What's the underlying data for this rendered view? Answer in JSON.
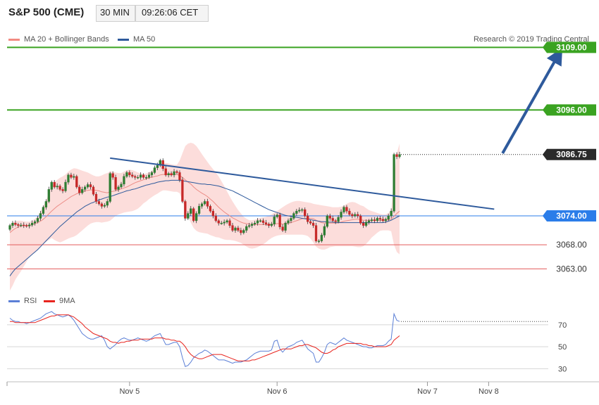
{
  "header": {
    "title": "S&P 500 (CME)",
    "timeframe": "30 MIN",
    "time": "09:26:06 CET"
  },
  "legend": {
    "items": [
      {
        "label": "MA 20 + Bollinger Bands",
        "color": "#f28b82"
      },
      {
        "label": "MA 50",
        "color": "#2e5a9c"
      }
    ],
    "copyright": "Research © 2019 Trading Central"
  },
  "rsi_legend": {
    "items": [
      {
        "label": "RSI",
        "color": "#5b7fd6"
      },
      {
        "label": "9MA",
        "color": "#e8241e"
      }
    ]
  },
  "price_levels": [
    {
      "label": "3109.00",
      "value": 3109.0,
      "color": "#3aa321",
      "style": "resistance"
    },
    {
      "label": "3096.00",
      "value": 3096.0,
      "color": "#3aa321",
      "style": "resistance"
    },
    {
      "label": "3086.75",
      "value": 3086.75,
      "color": "#1f1f1f",
      "style": "last"
    },
    {
      "label": "3074.00",
      "value": 3074.0,
      "color": "#2b7de9",
      "style": "pivot"
    },
    {
      "label": "3068.00",
      "value": 3068.0,
      "color": "#e35b5b",
      "style": "support"
    },
    {
      "label": "3063.00",
      "value": 3063.0,
      "color": "#e35b5b",
      "style": "support"
    }
  ],
  "rsi_levels": [
    "70",
    "50",
    "30"
  ],
  "x_labels": [
    "Nov 5",
    "Nov 6",
    "Nov 7",
    "Nov 8"
  ],
  "chart_data": {
    "type": "candlestick",
    "price_scale": {
      "min": 3057.5,
      "max": 3113
    },
    "rsi_scale": {
      "min": 20,
      "max": 84
    },
    "date_ticks": [
      {
        "label": "Nov 5",
        "index": 43
      },
      {
        "label": "Nov 6",
        "index": 96
      },
      {
        "label": "Nov 7",
        "index": 150
      },
      {
        "label": "Nov 8",
        "index": 172
      }
    ],
    "close": [
      3072.0,
      3072.5,
      3072.2,
      3072.0,
      3072.1,
      3072.0,
      3071.9,
      3072.1,
      3072.5,
      3072.8,
      3073.5,
      3074.5,
      3075.8,
      3077.0,
      3079.5,
      3081.0,
      3080.0,
      3080.2,
      3079.5,
      3079.2,
      3081.0,
      3082.5,
      3082.0,
      3082.2,
      3080.0,
      3078.8,
      3079.5,
      3080.0,
      3080.5,
      3080.0,
      3078.5,
      3077.0,
      3076.5,
      3076.0,
      3076.2,
      3077.0,
      3082.8,
      3082.0,
      3079.5,
      3080.0,
      3080.6,
      3082.2,
      3083.0,
      3082.5,
      3082.2,
      3082.0,
      3082.0,
      3082.5,
      3082.0,
      3082.0,
      3082.5,
      3083.0,
      3084.0,
      3084.5,
      3085.5,
      3083.8,
      3082.5,
      3082.8,
      3082.5,
      3083.2,
      3083.0,
      3081.5,
      3077.0,
      3073.5,
      3074.5,
      3075.5,
      3073.0,
      3074.5,
      3076.0,
      3076.5,
      3077.0,
      3076.0,
      3075.0,
      3074.0,
      3073.0,
      3072.5,
      3072.5,
      3072.7,
      3073.0,
      3072.0,
      3071.0,
      3071.5,
      3071.0,
      3070.5,
      3071.0,
      3071.8,
      3072.0,
      3072.3,
      3072.5,
      3073.0,
      3073.0,
      3072.6,
      3072.3,
      3072.0,
      3072.3,
      3073.8,
      3074.2,
      3071.7,
      3071.0,
      3072.5,
      3073.0,
      3073.5,
      3074.5,
      3075.0,
      3075.2,
      3075.3,
      3074.0,
      3072.8,
      3072.5,
      3072.0,
      3068.8,
      3068.8,
      3070.0,
      3071.8,
      3074.0,
      3073.5,
      3073.0,
      3072.8,
      3073.7,
      3074.8,
      3075.8,
      3075.0,
      3074.3,
      3074.0,
      3074.3,
      3074.0,
      3072.5,
      3072.0,
      3072.7,
      3073.0,
      3073.2,
      3073.0,
      3073.5,
      3073.3,
      3073.0,
      3073.3,
      3074.0,
      3075.0,
      3086.75,
      3086.3,
      3086.75
    ],
    "ma20": [
      3070.5,
      3071.0,
      3071.4,
      3071.7,
      3071.9,
      3072.0,
      3072.0,
      3072.1,
      3072.2,
      3072.4,
      3072.6,
      3072.9,
      3073.3,
      3073.8,
      3074.4,
      3075.0,
      3075.5,
      3076.0,
      3076.4,
      3076.8,
      3077.2,
      3077.6,
      3078.0,
      3078.3,
      3078.6,
      3078.8,
      3079.0,
      3079.2,
      3079.3,
      3079.4,
      3079.4,
      3079.3,
      3079.2,
      3079.0,
      3078.9,
      3078.8,
      3079.0,
      3079.1,
      3079.2,
      3079.4,
      3079.6,
      3079.8,
      3080.0,
      3080.3,
      3080.6,
      3080.9,
      3081.1,
      3081.3,
      3081.5,
      3081.7,
      3081.9,
      3082.0,
      3082.2,
      3082.3,
      3082.5,
      3082.6,
      3082.6,
      3082.6,
      3082.6,
      3082.6,
      3082.6,
      3082.4,
      3082.0,
      3081.5,
      3081.0,
      3080.6,
      3080.0,
      3079.5,
      3079.1,
      3078.7,
      3078.4,
      3078.0,
      3077.5,
      3077.0,
      3076.4,
      3075.8,
      3075.3,
      3074.8,
      3074.4,
      3074.0,
      3073.6,
      3073.3,
      3073.0,
      3072.7,
      3072.5,
      3072.4,
      3072.3,
      3072.2,
      3072.2,
      3072.2,
      3072.2,
      3072.2,
      3072.2,
      3072.2,
      3072.2,
      3072.3,
      3072.4,
      3072.4,
      3072.3,
      3072.4,
      3072.5,
      3072.6,
      3072.8,
      3073.0,
      3073.2,
      3073.4,
      3073.5,
      3073.5,
      3073.5,
      3073.4,
      3073.1,
      3072.8,
      3072.6,
      3072.5,
      3072.5,
      3072.5,
      3072.5,
      3072.5,
      3072.6,
      3072.7,
      3072.9,
      3073.0,
      3073.1,
      3073.2,
      3073.3,
      3073.3,
      3073.2,
      3073.1,
      3073.1,
      3073.1,
      3073.1,
      3073.1,
      3073.1,
      3073.1,
      3073.1,
      3073.1,
      3073.2,
      3073.3,
      3073.9,
      3074.5,
      3075.0
    ],
    "bb_upper": [
      3072.2,
      3072.6,
      3072.9,
      3073.0,
      3073.0,
      3072.9,
      3072.8,
      3072.8,
      3073.0,
      3073.4,
      3074.0,
      3074.9,
      3076.0,
      3077.2,
      3078.6,
      3080.0,
      3080.9,
      3081.5,
      3081.9,
      3082.2,
      3082.6,
      3083.2,
      3083.6,
      3083.9,
      3083.8,
      3083.6,
      3083.4,
      3083.2,
      3083.0,
      3082.7,
      3082.4,
      3082.2,
      3082.2,
      3082.4,
      3082.7,
      3082.9,
      3083.2,
      3083.2,
      3083.0,
      3082.9,
      3082.9,
      3083.2,
      3083.5,
      3083.6,
      3083.5,
      3083.3,
      3083.0,
      3082.8,
      3082.7,
      3082.8,
      3083.1,
      3083.4,
      3083.8,
      3084.2,
      3084.7,
      3085.0,
      3085.0,
      3084.9,
      3084.7,
      3084.6,
      3084.6,
      3085.5,
      3087.0,
      3088.5,
      3089.0,
      3089.2,
      3089.0,
      3088.5,
      3087.7,
      3086.8,
      3086.0,
      3085.2,
      3084.4,
      3083.7,
      3083.0,
      3082.2,
      3081.2,
      3080.2,
      3079.1,
      3078.0,
      3077.0,
      3076.1,
      3075.2,
      3074.5,
      3073.8,
      3073.4,
      3073.1,
      3073.1,
      3073.2,
      3073.4,
      3073.6,
      3073.7,
      3073.8,
      3074.0,
      3074.3,
      3074.7,
      3075.0,
      3075.4,
      3075.8,
      3076.2,
      3076.5,
      3076.8,
      3077.0,
      3077.1,
      3077.1,
      3077.0,
      3076.9,
      3076.8,
      3076.7,
      3076.5,
      3076.4,
      3076.3,
      3076.2,
      3076.1,
      3076.0,
      3075.9,
      3075.8,
      3075.8,
      3075.8,
      3075.9,
      3076.1,
      3076.5,
      3076.8,
      3076.9,
      3076.8,
      3076.5,
      3076.2,
      3076.0,
      3075.6,
      3075.2,
      3075.0,
      3074.8,
      3074.6,
      3074.4,
      3074.3,
      3074.3,
      3074.6,
      3075.2,
      3082.0,
      3087.0,
      3089.0
    ],
    "bb_lower": [
      3058.5,
      3059.5,
      3060.8,
      3061.7,
      3062.5,
      3063.5,
      3064.5,
      3065.5,
      3066.0,
      3066.4,
      3067.0,
      3067.6,
      3068.1,
      3068.6,
      3069.0,
      3069.4,
      3069.0,
      3068.7,
      3068.5,
      3068.7,
      3069.0,
      3069.3,
      3069.5,
      3069.7,
      3070.0,
      3070.5,
      3071.0,
      3071.5,
      3072.0,
      3072.4,
      3072.6,
      3072.7,
      3072.7,
      3072.6,
      3072.7,
      3072.8,
      3073.0,
      3073.5,
      3074.0,
      3074.3,
      3074.5,
      3074.7,
      3074.8,
      3074.9,
      3075.0,
      3075.2,
      3075.5,
      3076.0,
      3076.6,
      3077.0,
      3077.5,
      3077.9,
      3078.3,
      3078.6,
      3079.0,
      3079.3,
      3079.3,
      3079.2,
      3079.1,
      3079.0,
      3079.0,
      3078.7,
      3077.2,
      3075.5,
      3073.8,
      3072.6,
      3071.5,
      3070.9,
      3070.6,
      3070.5,
      3070.4,
      3070.3,
      3070.0,
      3069.8,
      3069.6,
      3069.5,
      3069.3,
      3069.1,
      3069.0,
      3069.0,
      3068.9,
      3068.8,
      3068.6,
      3068.4,
      3068.0,
      3067.6,
      3067.3,
      3067.2,
      3067.3,
      3067.5,
      3067.8,
      3068.1,
      3068.5,
      3069.0,
      3069.4,
      3069.7,
      3069.9,
      3070.0,
      3070.1,
      3070.1,
      3070.1,
      3070.1,
      3070.1,
      3070.1,
      3070.1,
      3070.1,
      3070.0,
      3069.8,
      3069.3,
      3068.5,
      3067.6,
      3067.2,
      3067.0,
      3067.0,
      3067.2,
      3067.5,
      3067.6,
      3067.7,
      3067.7,
      3067.7,
      3067.7,
      3067.7,
      3067.7,
      3067.7,
      3067.6,
      3067.5,
      3067.5,
      3067.7,
      3068.2,
      3068.8,
      3069.5,
      3070.0,
      3070.5,
      3070.9,
      3071.0,
      3071.0,
      3071.0,
      3070.8,
      3068.0,
      3066.5,
      3066.0
    ],
    "ma50": [
      3061.5,
      3062.3,
      3063.0,
      3063.5,
      3064.0,
      3064.5,
      3065.0,
      3065.5,
      3066.0,
      3066.5,
      3067.0,
      3067.6,
      3068.2,
      3068.8,
      3069.4,
      3070.0,
      3070.6,
      3071.2,
      3071.8,
      3072.3,
      3072.8,
      3073.3,
      3073.8,
      3074.3,
      3074.8,
      3075.2,
      3075.6,
      3076.0,
      3076.3,
      3076.6,
      3076.8,
      3077.1,
      3077.3,
      3077.5,
      3077.7,
      3077.9,
      3078.0,
      3078.2,
      3078.4,
      3078.6,
      3078.8,
      3079.0,
      3079.2,
      3079.3,
      3079.5,
      3079.6,
      3079.8,
      3080.0,
      3080.2,
      3080.4,
      3080.5,
      3080.7,
      3080.8,
      3081.0,
      3081.1,
      3081.2,
      3081.3,
      3081.3,
      3081.4,
      3081.4,
      3081.4,
      3081.4,
      3081.3,
      3081.2,
      3081.1,
      3081.0,
      3080.9,
      3080.8,
      3080.7,
      3080.6,
      3080.6,
      3080.5,
      3080.5,
      3080.4,
      3080.3,
      3080.2,
      3080.0,
      3079.8,
      3079.6,
      3079.4,
      3079.2,
      3078.9,
      3078.6,
      3078.3,
      3078.0,
      3077.7,
      3077.4,
      3077.1,
      3076.8,
      3076.5,
      3076.2,
      3075.9,
      3075.6,
      3075.3,
      3075.1,
      3074.9,
      3074.7,
      3074.5,
      3074.3,
      3074.1,
      3074.0,
      3073.9,
      3073.8,
      3073.7,
      3073.6,
      3073.5,
      3073.4,
      3073.3,
      3073.2,
      3073.1,
      3073.0,
      3072.9,
      3072.8,
      3072.8,
      3072.7,
      3072.7,
      3072.7,
      3072.6,
      3072.6,
      3072.6,
      3072.6,
      3072.6,
      3072.6,
      3072.6,
      3072.6,
      3072.6,
      3072.6,
      3072.6,
      3072.6,
      3072.6,
      3072.6,
      3072.6,
      3072.6,
      3072.6,
      3072.6,
      3072.7,
      3072.9,
      3073.1,
      3073.4,
      3073.7,
      3074.0
    ],
    "rsi": [
      76,
      74,
      73,
      73,
      72,
      72,
      71,
      72,
      73,
      74,
      75,
      76,
      78,
      80,
      81,
      82,
      80,
      79,
      78,
      77,
      78,
      79,
      77,
      74,
      70,
      66,
      62,
      60,
      58,
      57,
      57,
      58,
      59,
      60,
      56,
      50,
      48,
      50,
      52,
      55,
      57,
      58,
      57,
      56,
      56,
      57,
      58,
      57,
      56,
      55,
      56,
      58,
      60,
      61,
      62,
      57,
      52,
      52,
      53,
      54,
      54,
      50,
      40,
      32,
      33,
      36,
      40,
      42,
      44,
      45,
      47,
      46,
      44,
      42,
      40,
      38,
      38,
      38,
      37,
      36,
      35,
      36,
      36,
      36,
      37,
      38,
      40,
      42,
      44,
      45,
      46,
      46,
      46,
      46,
      47,
      55,
      56,
      48,
      45,
      48,
      50,
      51,
      52,
      54,
      55,
      56,
      52,
      48,
      46,
      44,
      36,
      36,
      40,
      45,
      52,
      54,
      53,
      52,
      54,
      56,
      58,
      56,
      55,
      54,
      53,
      52,
      51,
      50,
      50,
      49,
      49,
      50,
      51,
      51,
      51,
      52,
      55,
      57,
      80,
      74,
      73
    ],
    "rsi_ma9": [
      73,
      73,
      72,
      72,
      72,
      72,
      72,
      72,
      72,
      72,
      73,
      74,
      75,
      76,
      77,
      78,
      78,
      79,
      79,
      79,
      79,
      79,
      78,
      77,
      75,
      73,
      71,
      68,
      66,
      64,
      62,
      61,
      60,
      59,
      58,
      57,
      55,
      54,
      54,
      53,
      54,
      54,
      55,
      55,
      56,
      56,
      56,
      57,
      57,
      57,
      57,
      57,
      58,
      58,
      58,
      58,
      57,
      57,
      56,
      56,
      55,
      55,
      53,
      50,
      46,
      43,
      41,
      40,
      39,
      39,
      40,
      41,
      42,
      43,
      43,
      43,
      43,
      42,
      41,
      40,
      39,
      38,
      37,
      37,
      37,
      37,
      37,
      38,
      38,
      39,
      40,
      41,
      42,
      43,
      44,
      45,
      46,
      47,
      48,
      48,
      48,
      48,
      49,
      50,
      51,
      51,
      52,
      52,
      51,
      50,
      49,
      47,
      45,
      44,
      44,
      45,
      47,
      48,
      50,
      51,
      52,
      53,
      53,
      53,
      53,
      53,
      53,
      52,
      52,
      51,
      51,
      50,
      50,
      50,
      50,
      50,
      51,
      52,
      56,
      58,
      60
    ],
    "trendline": {
      "start_index": 36,
      "start_value": 3086.0,
      "end_index": 174,
      "end_value": 3075.4
    },
    "target_arrow": {
      "start_index": 177,
      "start_value": 3087.0,
      "end_index": 197,
      "end_value": 3107.4
    }
  }
}
